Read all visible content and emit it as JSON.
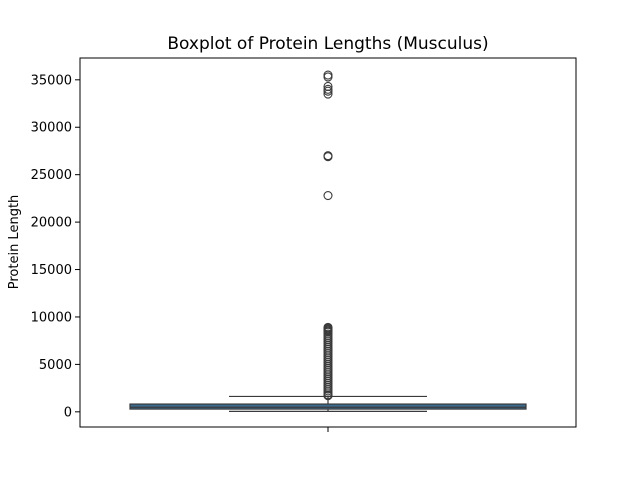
{
  "chart_data": {
    "type": "box",
    "title": "Boxplot of Protein Lengths (Musculus)",
    "xlabel": "",
    "ylabel": "Protein Length",
    "ylim": [
      -1600,
      37300
    ],
    "yticks": [
      0,
      5000,
      10000,
      15000,
      20000,
      25000,
      30000,
      35000
    ],
    "ytick_labels": [
      "0",
      "5000",
      "10000",
      "15000",
      "20000",
      "25000",
      "30000",
      "35000"
    ],
    "grid": false,
    "box": {
      "min": 50,
      "q1": 290,
      "median": 480,
      "q3": 820,
      "whisker_low": 50,
      "whisker_high": 1620,
      "fill_color": "#3b6b8f",
      "edge_color": "#3a3a3a"
    },
    "outliers": [
      35500,
      35300,
      34300,
      34000,
      33800,
      33500,
      27000,
      26900,
      22800,
      8900,
      8800,
      8700,
      8600,
      8500,
      8400,
      8200,
      8000,
      7800,
      7600,
      7400,
      7200,
      7000,
      6800,
      6600,
      6400,
      6200,
      6000,
      5800,
      5600,
      5400,
      5200,
      5000,
      4800,
      4600,
      4400,
      4200,
      4000,
      3800,
      3600,
      3400,
      3200,
      3000,
      2800,
      2600,
      2400,
      2200,
      2000,
      1800,
      1700
    ]
  }
}
